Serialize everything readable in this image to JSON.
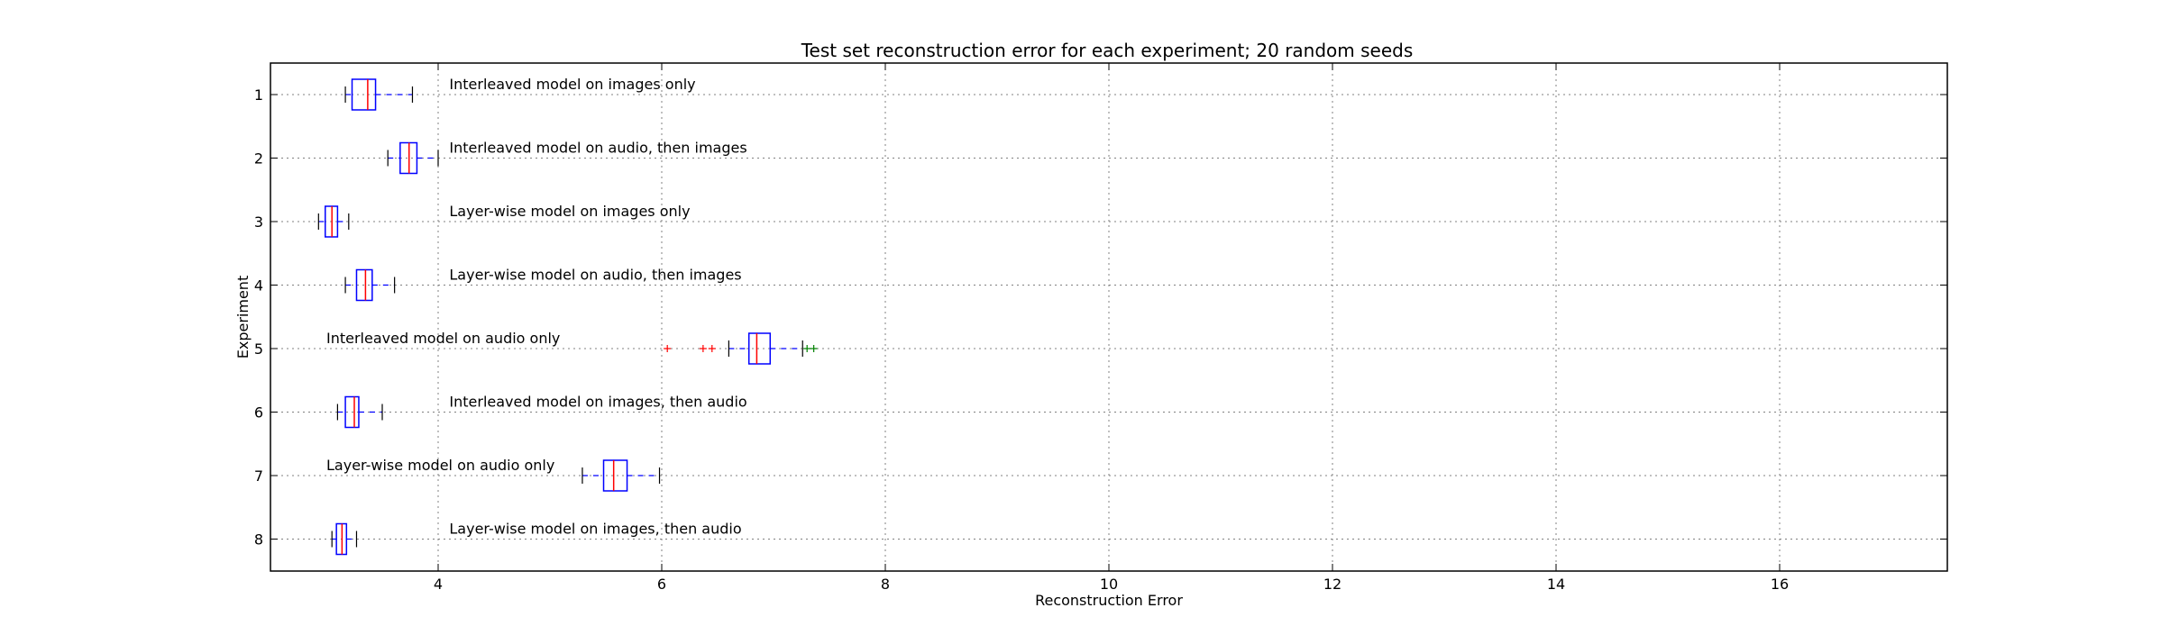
{
  "chart_data": {
    "type": "boxplot",
    "orientation": "horizontal",
    "title": "Test set reconstruction error for each experiment; 20 random seeds",
    "xlabel": "Reconstruction Error",
    "ylabel": "Experiment",
    "xlim": [
      2.5,
      17.5
    ],
    "xticks": [
      4,
      6,
      8,
      10,
      12,
      14,
      16
    ],
    "grid": true,
    "colors": {
      "box": "#0000ff",
      "median": "#ff0000",
      "whisker": "#0000ff",
      "flier_low": "#ff0000",
      "flier_high": "#008000",
      "grid": "#808080"
    },
    "experiments": [
      {
        "label": "1",
        "annotation": "Interleaved model on images only",
        "whisker_low": 3.17,
        "q1": 3.23,
        "median": 3.37,
        "q3": 3.44,
        "whisker_high": 3.77,
        "fliers_low": [],
        "fliers_high": []
      },
      {
        "label": "2",
        "annotation": "Interleaved model on audio, then images",
        "whisker_low": 3.55,
        "q1": 3.66,
        "median": 3.74,
        "q3": 3.81,
        "whisker_high": 4.0,
        "fliers_low": [],
        "fliers_high": []
      },
      {
        "label": "3",
        "annotation": "Layer-wise model on images only",
        "whisker_low": 2.93,
        "q1": 2.99,
        "median": 3.05,
        "q3": 3.1,
        "whisker_high": 3.2,
        "fliers_low": [],
        "fliers_high": []
      },
      {
        "label": "4",
        "annotation": "Layer-wise model on audio, then images",
        "whisker_low": 3.17,
        "q1": 3.27,
        "median": 3.35,
        "q3": 3.41,
        "whisker_high": 3.61,
        "fliers_low": [],
        "fliers_high": []
      },
      {
        "label": "5",
        "annotation": "Interleaved model on audio only",
        "whisker_low": 6.6,
        "q1": 6.78,
        "median": 6.85,
        "q3": 6.97,
        "whisker_high": 7.26,
        "fliers_low": [
          6.05,
          6.37,
          6.45
        ],
        "fliers_high": [
          7.3,
          7.36
        ]
      },
      {
        "label": "6",
        "annotation": "Interleaved model on images, then audio",
        "whisker_low": 3.1,
        "q1": 3.17,
        "median": 3.25,
        "q3": 3.29,
        "whisker_high": 3.5,
        "fliers_low": [],
        "fliers_high": []
      },
      {
        "label": "7",
        "annotation": "Layer-wise model on audio only",
        "whisker_low": 5.29,
        "q1": 5.48,
        "median": 5.57,
        "q3": 5.69,
        "whisker_high": 5.98,
        "fliers_low": [],
        "fliers_high": []
      },
      {
        "label": "8",
        "annotation": "Layer-wise model on images, then audio",
        "whisker_low": 3.05,
        "q1": 3.09,
        "median": 3.14,
        "q3": 3.18,
        "whisker_high": 3.27,
        "fliers_low": [],
        "fliers_high": []
      }
    ]
  }
}
